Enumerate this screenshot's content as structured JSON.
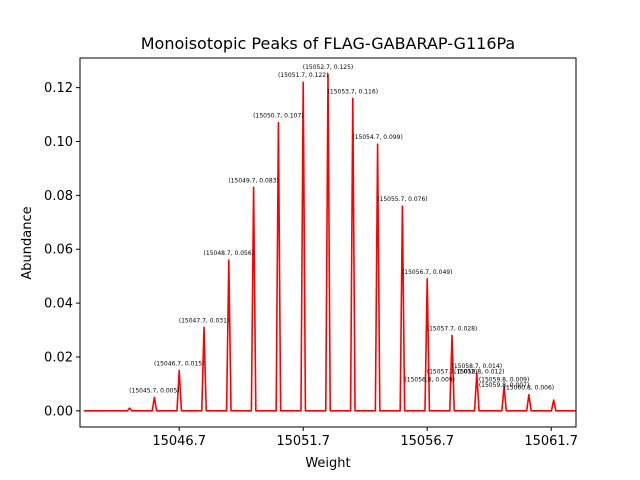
{
  "chart_data": {
    "type": "line",
    "title": "Monoisotopic Peaks of FLAG-GABARAP-G116Pa",
    "xlabel": "Weight",
    "ylabel": "Abundance",
    "xlim": [
      15042.7,
      15062.7
    ],
    "ylim": [
      -0.006,
      0.131
    ],
    "xticks": [
      15046.7,
      15051.7,
      15056.7,
      15061.7
    ],
    "xtick_labels": [
      "15046.7",
      "15051.7",
      "15056.7",
      "15061.7"
    ],
    "yticks": [
      0.0,
      0.02,
      0.04,
      0.06,
      0.08,
      0.1,
      0.12
    ],
    "ytick_labels": [
      "0.00",
      "0.02",
      "0.04",
      "0.06",
      "0.08",
      "0.10",
      "0.12"
    ],
    "line_color": "#ff0000",
    "grid": false,
    "legend": "none",
    "series": [
      {
        "peaks": [
          {
            "x": 15044.7,
            "y": 0.001
          },
          {
            "x": 15045.7,
            "y": 0.005
          },
          {
            "x": 15046.7,
            "y": 0.015
          },
          {
            "x": 15047.7,
            "y": 0.031
          },
          {
            "x": 15048.7,
            "y": 0.056
          },
          {
            "x": 15049.7,
            "y": 0.083
          },
          {
            "x": 15050.7,
            "y": 0.107
          },
          {
            "x": 15051.7,
            "y": 0.122
          },
          {
            "x": 15052.7,
            "y": 0.125
          },
          {
            "x": 15053.7,
            "y": 0.116
          },
          {
            "x": 15054.7,
            "y": 0.099
          },
          {
            "x": 15055.7,
            "y": 0.076
          },
          {
            "x": 15056.7,
            "y": 0.049
          },
          {
            "x": 15057.7,
            "y": 0.028
          },
          {
            "x": 15058.7,
            "y": 0.014
          },
          {
            "x": 15059.8,
            "y": 0.009
          },
          {
            "x": 15060.8,
            "y": 0.006
          },
          {
            "x": 15061.8,
            "y": 0.004
          },
          {
            "x": 15062.8,
            "y": 0.002
          }
        ]
      }
    ],
    "annotations": [
      {
        "text": "(15045.7, 0.005)",
        "x": 15045.7,
        "y": 0.005
      },
      {
        "text": "(15046.7, 0.015)",
        "x": 15046.7,
        "y": 0.015
      },
      {
        "text": "(15047.7, 0.031)",
        "x": 15047.7,
        "y": 0.031
      },
      {
        "text": "(15048.7, 0.056)",
        "x": 15048.7,
        "y": 0.056
      },
      {
        "text": "(15049.7, 0.083)",
        "x": 15049.7,
        "y": 0.083
      },
      {
        "text": "(15050.7, 0.107)",
        "x": 15050.7,
        "y": 0.107
      },
      {
        "text": "(15051.7, 0.122)",
        "x": 15051.7,
        "y": 0.122
      },
      {
        "text": "(15052.7, 0.125)",
        "x": 15052.7,
        "y": 0.125
      },
      {
        "text": "(15053.7, 0.116)",
        "x": 15053.7,
        "y": 0.116
      },
      {
        "text": "(15054.7, 0.099)",
        "x": 15054.7,
        "y": 0.099
      },
      {
        "text": "(15055.7, 0.076)",
        "x": 15055.7,
        "y": 0.076
      },
      {
        "text": "(15056.7, 0.049)",
        "x": 15056.7,
        "y": 0.049
      },
      {
        "text": "(15057.7, 0.028)",
        "x": 15057.7,
        "y": 0.028
      },
      {
        "text": "(15058.7, 0.014)",
        "x": 15058.7,
        "y": 0.014
      },
      {
        "text": "(15057.7, 0.012)",
        "x": 15057.7,
        "y": 0.012
      },
      {
        "text": "(15056.8, 0.009)",
        "x": 15056.8,
        "y": 0.009
      },
      {
        "text": "(15059.8, 0.009)",
        "x": 15059.8,
        "y": 0.009
      },
      {
        "text": "(15059.8, 0.007)",
        "x": 15059.8,
        "y": 0.007
      },
      {
        "text": "(15060.8, 0.006)",
        "x": 15060.8,
        "y": 0.006
      },
      {
        "text": "(15058.8, 0.012)",
        "x": 15058.8,
        "y": 0.012
      }
    ]
  }
}
